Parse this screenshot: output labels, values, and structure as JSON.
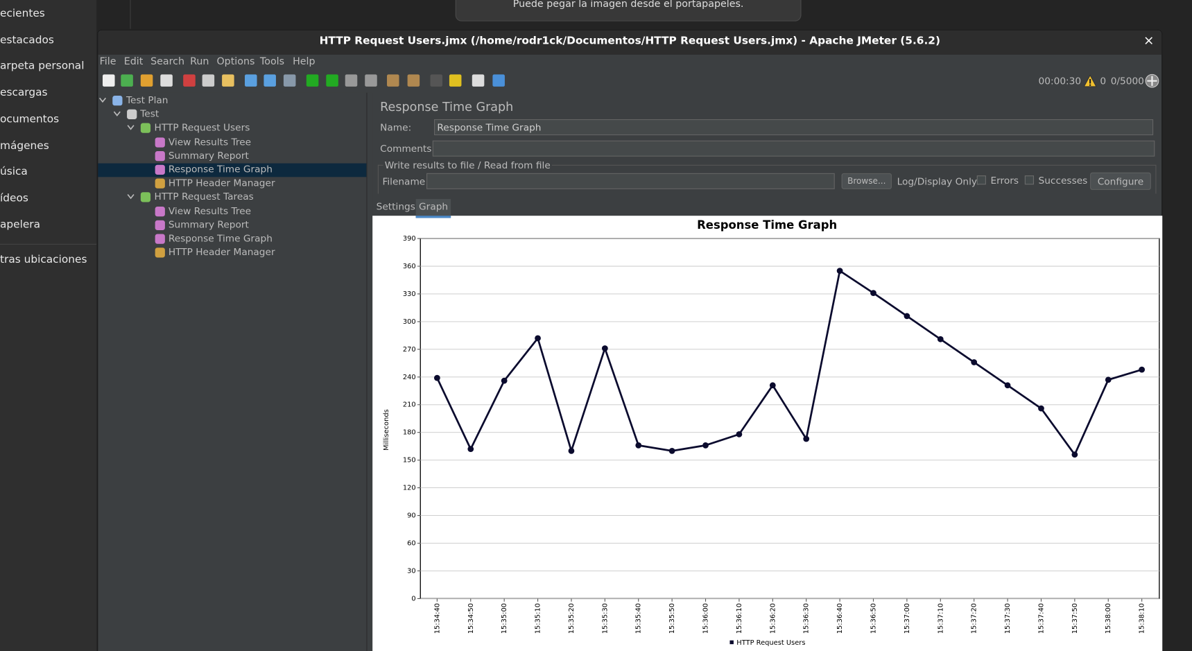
{
  "desktop_sidebar": {
    "items": [
      "ecientes",
      "estacados",
      "arpeta personal",
      "escargas",
      "ocumentos",
      "mágenes",
      "úsica",
      "ídeos",
      "apelera"
    ],
    "other": "tras ubicaciones"
  },
  "notification": "Puede pegar la imagen desde el portapapeles.",
  "window": {
    "title": "HTTP Request Users.jmx (/home/rodr1ck/Documentos/HTTP Request Users.jmx) - Apache JMeter (5.6.2)",
    "close": "×"
  },
  "menu": [
    "File",
    "Edit",
    "Search",
    "Run",
    "Options",
    "Tools",
    "Help"
  ],
  "toolbar": {
    "timer": "00:00:30",
    "warnings": 0,
    "threads": "0/5000"
  },
  "tree": {
    "label": "Test Plan",
    "children": [
      {
        "label": "Test",
        "children": [
          {
            "label": "HTTP Request Users",
            "children": [
              {
                "label": "View Results Tree"
              },
              {
                "label": "Summary Report"
              },
              {
                "label": "Response Time Graph",
                "selected": true
              },
              {
                "label": "HTTP Header Manager"
              }
            ]
          },
          {
            "label": "HTTP Request Tareas",
            "children": [
              {
                "label": "View Results Tree"
              },
              {
                "label": "Summary Report"
              },
              {
                "label": "Response Time Graph"
              },
              {
                "label": "HTTP Header Manager"
              }
            ]
          }
        ]
      }
    ]
  },
  "panel": {
    "heading": "Response Time Graph",
    "name_label": "Name:",
    "name_value": "Response Time Graph",
    "comments_label": "Comments:",
    "fieldset_legend": "Write results to file / Read from file",
    "filename_label": "Filename",
    "browse_button": "Browse...",
    "log_display_label": "Log/Display Only:",
    "errors_label": "Errors",
    "successes_label": "Successes",
    "configure_button": "Configure",
    "tabs": [
      "Settings",
      "Graph"
    ],
    "active_tab": 1
  },
  "chart_data": {
    "type": "line",
    "title": "Response Time Graph",
    "y_label": "Milliseconds",
    "categories": [
      "15:34:40",
      "15:34:50",
      "15:35:00",
      "15:35:10",
      "15:35:20",
      "15:35:30",
      "15:35:40",
      "15:35:50",
      "15:36:00",
      "15:36:10",
      "15:36:20",
      "15:36:30",
      "15:36:40",
      "15:36:50",
      "15:37:00",
      "15:37:10",
      "15:37:20",
      "15:37:30",
      "15:37:40",
      "15:37:50",
      "15:38:00",
      "15:38:10"
    ],
    "series": [
      {
        "name": "HTTP Request Users",
        "color": "#0b0b2e",
        "values": [
          239,
          162,
          236,
          282,
          160,
          271,
          166,
          160,
          166,
          178,
          231,
          173,
          355,
          331,
          306,
          281,
          256,
          231,
          206,
          156,
          237,
          248
        ]
      }
    ],
    "ylim": [
      0,
      390
    ],
    "yticks": [
      0,
      30,
      60,
      90,
      120,
      150,
      180,
      210,
      240,
      270,
      300,
      330,
      360,
      390
    ],
    "grid": true
  }
}
